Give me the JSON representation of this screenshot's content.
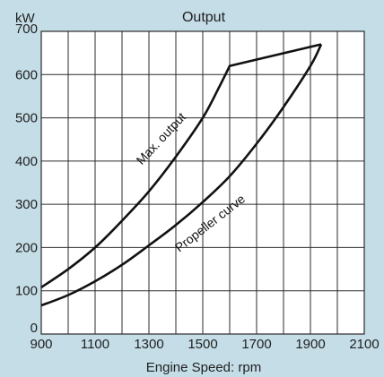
{
  "chart_data": {
    "type": "line",
    "title": "Output",
    "xlabel": "Engine Speed: rpm",
    "ylabel": "kW",
    "xlim": [
      900,
      2100
    ],
    "ylim": [
      0,
      700
    ],
    "x_ticks": [
      "900",
      "1100",
      "1300",
      "1500",
      "1700",
      "1900",
      "2100"
    ],
    "y_ticks": [
      "0",
      "100",
      "200",
      "300",
      "400",
      "500",
      "600",
      "700"
    ],
    "grid": true,
    "series": [
      {
        "name": "Max. output",
        "x": [
          900,
          1000,
          1100,
          1200,
          1300,
          1400,
          1500,
          1560,
          1600,
          1700,
          1800,
          1900,
          1940
        ],
        "y": [
          108,
          150,
          200,
          262,
          330,
          410,
          500,
          570,
          620,
          632,
          645,
          660,
          670
        ]
      },
      {
        "name": "Propeller curve",
        "x": [
          900,
          1000,
          1100,
          1200,
          1300,
          1400,
          1500,
          1600,
          1700,
          1800,
          1900,
          1940
        ],
        "y": [
          66,
          90,
          122,
          160,
          205,
          252,
          305,
          365,
          440,
          525,
          620,
          670
        ]
      }
    ]
  }
}
